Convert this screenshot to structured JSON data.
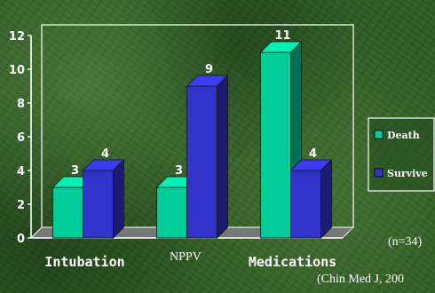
{
  "chart_data": {
    "type": "bar",
    "categories": [
      "Intubation",
      "NPPV",
      "Medications"
    ],
    "series": [
      {
        "name": "Death",
        "values": [
          3,
          3,
          11
        ],
        "color": "#00cc99"
      },
      {
        "name": "Survive",
        "values": [
          4,
          9,
          4
        ],
        "color": "#3333cc"
      }
    ],
    "ylim": [
      0,
      12
    ],
    "yticks": [
      0,
      2,
      4,
      6,
      8,
      10,
      12
    ],
    "grid": false,
    "legend": "right",
    "notes": {
      "n": "(n=34)",
      "citation": "(Chin Med J, 200"
    }
  }
}
